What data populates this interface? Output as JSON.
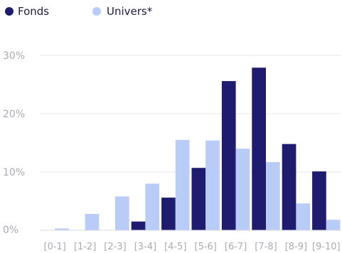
{
  "chart_data": {
    "type": "bar",
    "categories": [
      "[0-1]",
      "[1-2]",
      "[2-3]",
      "[3-4]",
      "[4-5]",
      "[5-6]",
      "[6-7]",
      "[7-8]",
      "[8-9]",
      "[9-10]"
    ],
    "series": [
      {
        "name": "Fonds",
        "color": "#1f1b6f",
        "values": [
          0,
          0,
          0,
          1.5,
          5.6,
          10.7,
          25.6,
          27.9,
          14.8,
          10.1
        ]
      },
      {
        "name": "Univers*",
        "color": "#b9ccf7",
        "values": [
          0.3,
          2.8,
          5.8,
          8.0,
          15.5,
          15.4,
          14.0,
          11.7,
          4.6,
          1.8
        ]
      }
    ],
    "y_ticks": [
      "0%",
      "10%",
      "20%",
      "30%"
    ],
    "ylim": [
      0,
      30
    ],
    "grid": true,
    "legend_position": "top-left",
    "title": "",
    "xlabel": "",
    "ylabel": ""
  }
}
